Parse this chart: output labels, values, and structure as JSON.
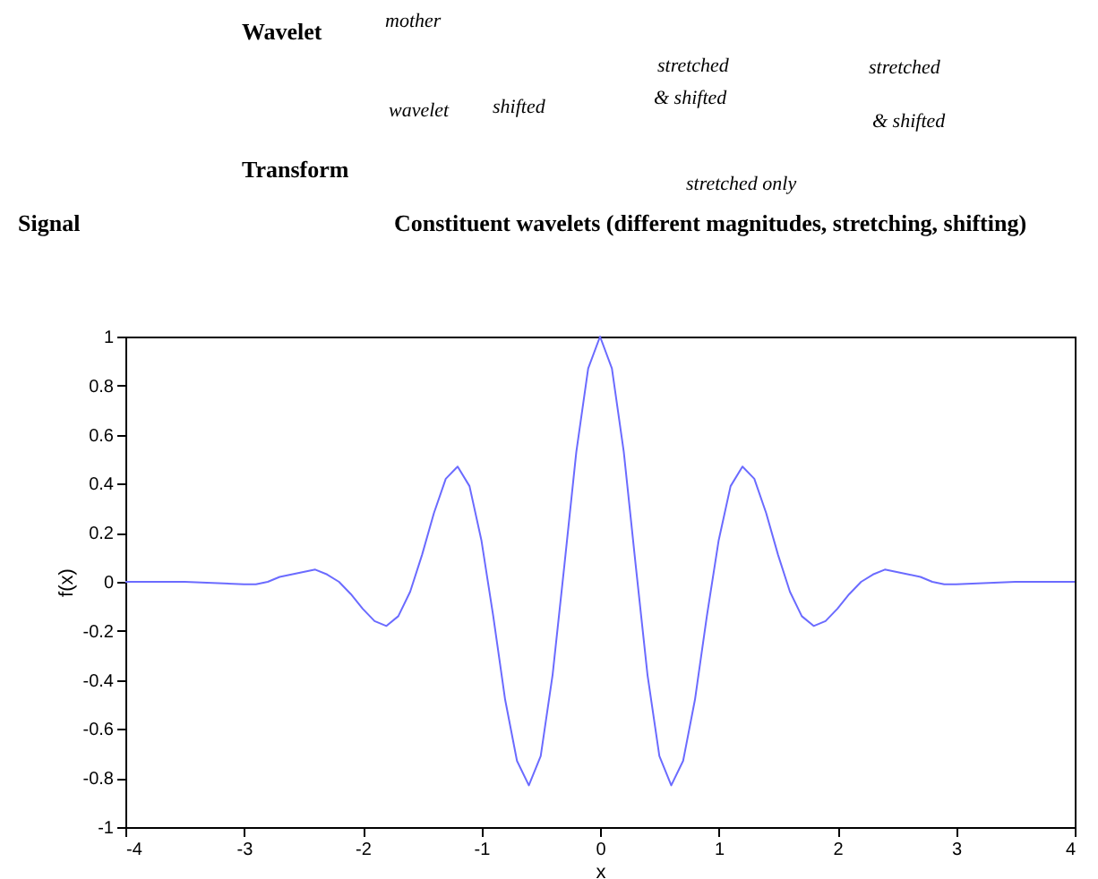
{
  "chart_data": {
    "type": "line",
    "xlabel": "x",
    "ylabel": "f(x)",
    "annotations": [
      "Wavelet",
      "mother",
      "stretched",
      "stretched",
      "Signal",
      "Transform",
      "shifted",
      "& shifted",
      "& shifted",
      "wavelet",
      "stretched only",
      "Constituent wavelets (different magnitudes, stretching,  shifting)"
    ],
    "x": [
      -4,
      -3.5,
      -3,
      -2.9,
      -2.8,
      -2.7,
      -2.6,
      -2.5,
      -2.4,
      -2.3,
      -2.2,
      -2.1,
      -2,
      -1.9,
      -1.8,
      -1.7,
      -1.6,
      -1.5,
      -1.4,
      -1.3,
      -1.2,
      -1.1,
      -1,
      -0.9,
      -0.8,
      -0.7,
      -0.6,
      -0.5,
      -0.4,
      -0.3,
      -0.2,
      -0.1,
      0,
      0.1,
      0.2,
      0.3,
      0.4,
      0.5,
      0.6,
      0.7,
      0.8,
      0.9,
      1,
      1.1,
      1.2,
      1.3,
      1.4,
      1.5,
      1.6,
      1.7,
      1.8,
      1.9,
      2,
      2.1,
      2.2,
      2.3,
      2.4,
      2.5,
      2.6,
      2.7,
      2.8,
      2.9,
      3,
      3.5,
      4
    ],
    "series": [
      {
        "color": "#6b6bff",
        "values": [
          0,
          0,
          -0.01,
          -0.01,
          0,
          0.02,
          0.03,
          0.04,
          0.05,
          0.03,
          0,
          -0.05,
          -0.11,
          -0.16,
          -0.18,
          -0.14,
          -0.04,
          0.11,
          0.28,
          0.42,
          0.47,
          0.39,
          0.17,
          -0.14,
          -0.48,
          -0.73,
          -0.83,
          -0.71,
          -0.38,
          0.07,
          0.53,
          0.87,
          1,
          0.87,
          0.53,
          0.07,
          -0.38,
          -0.71,
          -0.83,
          -0.73,
          -0.48,
          -0.14,
          0.17,
          0.39,
          0.47,
          0.42,
          0.28,
          0.11,
          -0.04,
          -0.14,
          -0.18,
          -0.16,
          -0.11,
          -0.05,
          0,
          0.03,
          0.05,
          0.04,
          0.03,
          0.02,
          0,
          -0.01,
          -0.01,
          0,
          0
        ]
      }
    ],
    "xlim": [
      -4,
      4
    ],
    "xticks": [
      -4,
      -3,
      -2,
      -1,
      0,
      1,
      2,
      3,
      4
    ],
    "ylim": [
      -1,
      1
    ],
    "yticks": [
      -1,
      -0.8,
      -0.6,
      -0.4,
      -0.2,
      0,
      0.2,
      0.4,
      0.6,
      0.8,
      1
    ],
    "grid": false,
    "legend": false,
    "line_style": "solid",
    "marker": "none"
  }
}
